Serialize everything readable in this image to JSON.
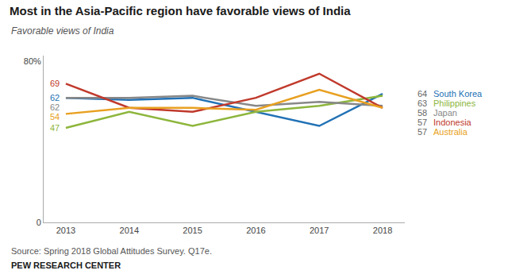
{
  "chart_data": {
    "type": "line",
    "title": "Most in the Asia-Pacific region have favorable views of India",
    "subtitle": "Favorable views of India",
    "annotations": [
      "Source: Spring 2018 Global Attitudes Survey. Q17e.",
      "PEW RESEARCH CENTER"
    ],
    "x": [
      2013,
      2014,
      2015,
      2016,
      2017,
      2018
    ],
    "xlim": [
      2012.65,
      2018.35
    ],
    "xticks": [
      2013,
      2014,
      2015,
      2016,
      2017,
      2018
    ],
    "ylim": [
      0,
      83
    ],
    "yticks": [
      0,
      {
        "value": 80,
        "label": "80%"
      }
    ],
    "grid": false,
    "series": [
      {
        "name": "South Korea",
        "color": "#2171b5",
        "values": [
          62,
          61,
          62,
          55,
          48,
          64
        ],
        "value_labels": [
          "62",
          null,
          null,
          null,
          null,
          "64"
        ]
      },
      {
        "name": "Philippines",
        "color": "#8db63c",
        "values": [
          47,
          55,
          48,
          55,
          58,
          63
        ],
        "value_labels": [
          "47",
          null,
          null,
          null,
          null,
          "63"
        ]
      },
      {
        "name": "Japan",
        "color": "#888888",
        "values": [
          62,
          62,
          63,
          58,
          60,
          58
        ],
        "value_labels": [
          "62",
          null,
          null,
          null,
          null,
          "58"
        ]
      },
      {
        "name": "Indonesia",
        "color": "#c0392b",
        "values": [
          69,
          57,
          55,
          62,
          74,
          57
        ],
        "value_labels": [
          "69",
          null,
          null,
          null,
          null,
          "57"
        ]
      },
      {
        "name": "Australia",
        "color": "#e8a020",
        "values": [
          54,
          57,
          57,
          56,
          66,
          57
        ],
        "value_labels": [
          "54",
          null,
          null,
          null,
          null,
          "57"
        ]
      }
    ]
  }
}
